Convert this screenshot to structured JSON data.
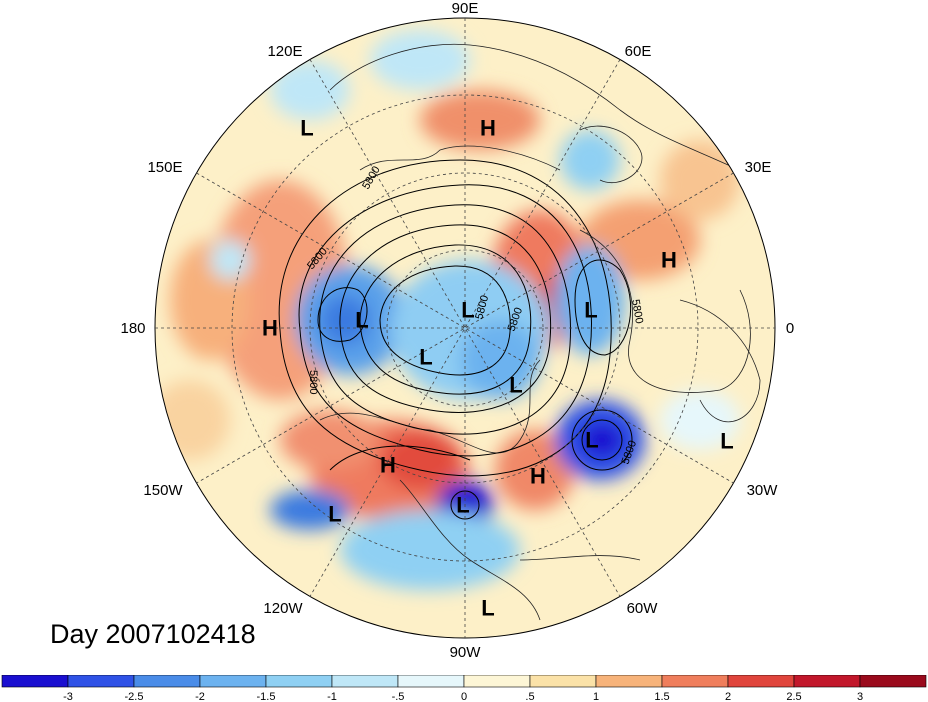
{
  "map": {
    "title": "Day 2007102418",
    "longitude_labels": {
      "lon_90E": "90E",
      "lon_60E": "60E",
      "lon_30E": "30E",
      "lon_0": "0",
      "lon_30W": "30W",
      "lon_60W": "60W",
      "lon_90W": "90W",
      "lon_120W": "120W",
      "lon_150W": "150W",
      "lon_180": "180",
      "lon_150E": "150E",
      "lon_120E": "120E"
    },
    "contour_labels": [
      "5800",
      "5800",
      "5800",
      "5800",
      "5800",
      "5800",
      "5800"
    ],
    "pressure_centers": [
      {
        "id": "L1",
        "type": "L"
      },
      {
        "id": "H1",
        "type": "H"
      },
      {
        "id": "H2",
        "type": "H"
      },
      {
        "id": "L2",
        "type": "L"
      },
      {
        "id": "H3",
        "type": "H"
      },
      {
        "id": "L3",
        "type": "L"
      },
      {
        "id": "L4",
        "type": "L"
      },
      {
        "id": "L5",
        "type": "L"
      },
      {
        "id": "L6",
        "type": "L"
      },
      {
        "id": "L7",
        "type": "L"
      },
      {
        "id": "H4",
        "type": "H"
      },
      {
        "id": "H5",
        "type": "H"
      },
      {
        "id": "L8",
        "type": "L"
      },
      {
        "id": "L9",
        "type": "L"
      },
      {
        "id": "L10",
        "type": "L"
      },
      {
        "id": "L11",
        "type": "L"
      }
    ]
  },
  "colorbar": {
    "tick_labels": [
      "-3",
      "-2.5",
      "-2",
      "-1.5",
      "-1",
      "-.5",
      "0",
      ".5",
      "1",
      "1.5",
      "2",
      "2.5",
      "3"
    ],
    "colors": [
      "#1a0fd0",
      "#2f52e6",
      "#4a8ce8",
      "#6cb2ef",
      "#8fd0f3",
      "#bfe7f7",
      "#e6f7fb",
      "#fdf6d6",
      "#fbe2a8",
      "#f7b37a",
      "#ef7e5c",
      "#e0453c",
      "#c2172b",
      "#9a0a1c"
    ]
  }
}
